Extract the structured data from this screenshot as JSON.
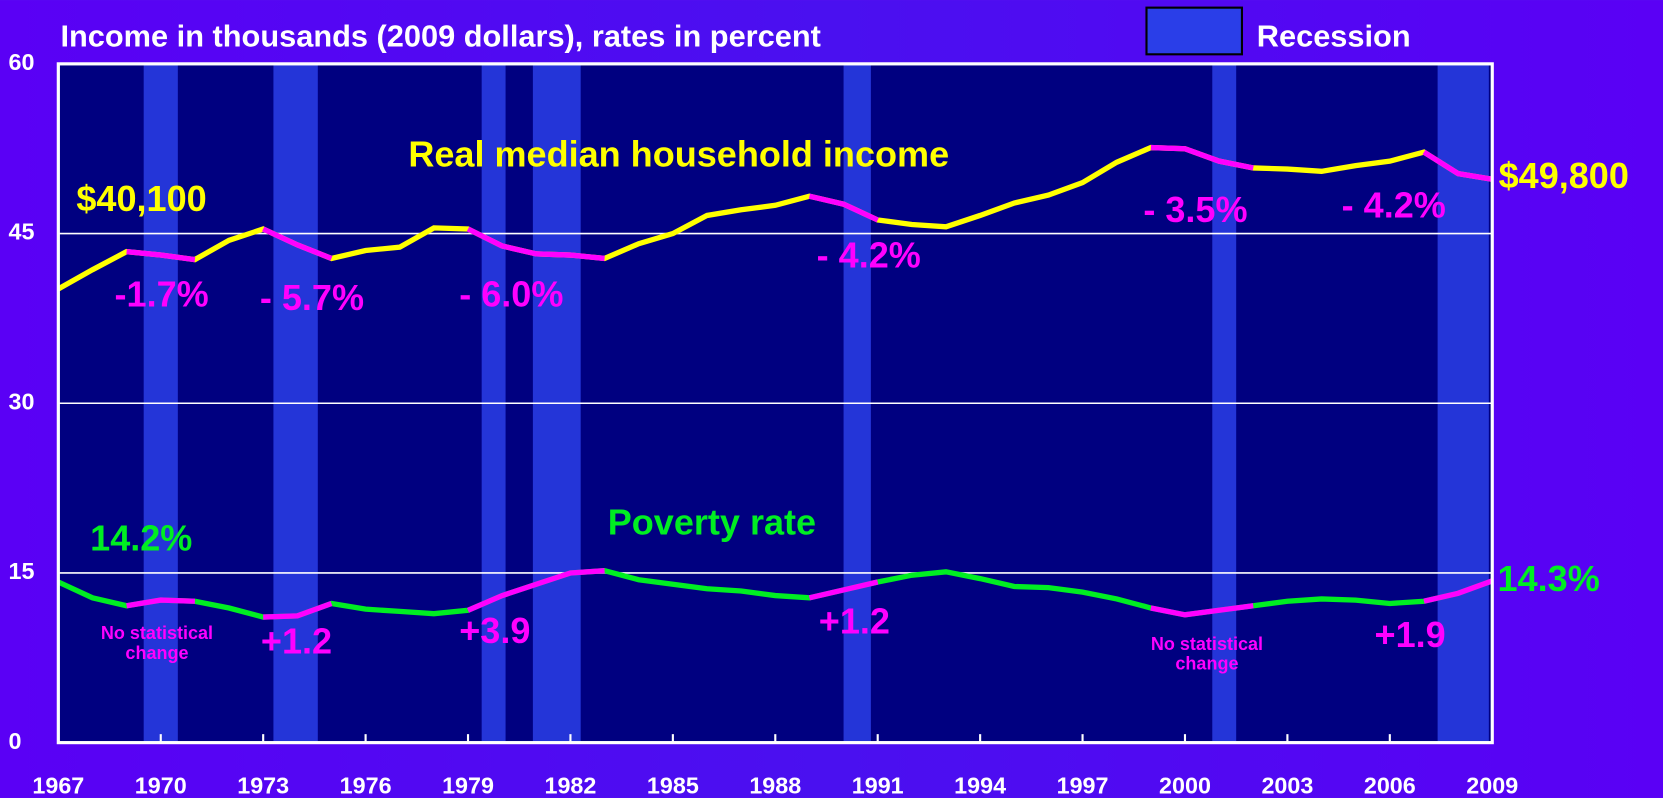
{
  "chart_data": {
    "type": "line",
    "title": "Income in thousands (2009 dollars), rates in percent",
    "legend_label": "Recession",
    "x": [
      1967,
      1968,
      1969,
      1970,
      1971,
      1972,
      1973,
      1974,
      1975,
      1976,
      1977,
      1978,
      1979,
      1980,
      1981,
      1982,
      1983,
      1984,
      1985,
      1986,
      1987,
      1988,
      1989,
      1990,
      1991,
      1992,
      1993,
      1994,
      1995,
      1996,
      1997,
      1998,
      1999,
      2000,
      2001,
      2002,
      2003,
      2004,
      2005,
      2006,
      2007,
      2008,
      2009
    ],
    "series": [
      {
        "name": "Real median household income",
        "color": "#ffff00",
        "highlight_color": "#ff00ff",
        "highlight_ranges": [
          [
            1969,
            1971
          ],
          [
            1973,
            1975
          ],
          [
            1979,
            1983
          ],
          [
            1989,
            1991
          ],
          [
            1999,
            2002
          ],
          [
            2007,
            2009
          ]
        ],
        "values": [
          40.1,
          41.8,
          43.4,
          43.1,
          42.7,
          44.4,
          45.4,
          44.0,
          42.8,
          43.5,
          43.8,
          45.5,
          45.4,
          43.9,
          43.2,
          43.1,
          42.8,
          44.1,
          45.0,
          46.6,
          47.1,
          47.5,
          48.3,
          47.6,
          46.2,
          45.8,
          45.6,
          46.6,
          47.7,
          48.4,
          49.5,
          51.3,
          52.6,
          52.5,
          51.4,
          50.8,
          50.7,
          50.5,
          51.0,
          51.4,
          52.2,
          50.3,
          49.8
        ]
      },
      {
        "name": "Poverty rate",
        "color": "#00ee22",
        "highlight_color": "#ff00ff",
        "highlight_ranges": [
          [
            1969,
            1971
          ],
          [
            1973,
            1975
          ],
          [
            1979,
            1983
          ],
          [
            1989,
            1991
          ],
          [
            1999,
            2002
          ],
          [
            2007,
            2009
          ]
        ],
        "values": [
          14.2,
          12.8,
          12.1,
          12.6,
          12.5,
          11.9,
          11.1,
          11.2,
          12.3,
          11.8,
          11.6,
          11.4,
          11.7,
          13.0,
          14.0,
          15.0,
          15.2,
          14.4,
          14.0,
          13.6,
          13.4,
          13.0,
          12.8,
          13.5,
          14.2,
          14.8,
          15.1,
          14.5,
          13.8,
          13.7,
          13.3,
          12.7,
          11.9,
          11.3,
          11.7,
          12.1,
          12.5,
          12.7,
          12.6,
          12.3,
          12.5,
          13.2,
          14.3
        ]
      }
    ],
    "recessions": [
      [
        1969.5,
        1970.5
      ],
      [
        1973.3,
        1974.6
      ],
      [
        1979.4,
        1980.1
      ],
      [
        1980.9,
        1982.3
      ],
      [
        1990.0,
        1990.8
      ],
      [
        2000.8,
        2001.5
      ],
      [
        2007.4,
        2008.9
      ]
    ],
    "recession_color": "#2a3ee8",
    "xlim": [
      1967,
      2009
    ],
    "xticks": [
      1967,
      1970,
      1973,
      1976,
      1979,
      1982,
      1985,
      1988,
      1991,
      1994,
      1997,
      2000,
      2003,
      2006,
      2009
    ],
    "ylim": [
      0,
      60
    ],
    "yticks": [
      0,
      15,
      30,
      45,
      60
    ],
    "grid": true,
    "annotations": [
      {
        "text": [
          "$40,100"
        ],
        "color": "#ffff00"
      },
      {
        "text": [
          "Real median household income"
        ],
        "color": "#ffff00"
      },
      {
        "text": [
          "-1.7%"
        ],
        "color": "#ff00ff"
      },
      {
        "text": [
          "- 5.7%"
        ],
        "color": "#ff00ff"
      },
      {
        "text": [
          "- 6.0%"
        ],
        "color": "#ff00ff"
      },
      {
        "text": [
          "- 4.2%"
        ],
        "color": "#ff00ff"
      },
      {
        "text": [
          "- 3.5%"
        ],
        "color": "#ff00ff"
      },
      {
        "text": [
          "- 4.2%"
        ],
        "color": "#ff00ff"
      },
      {
        "text": [
          "$49,800"
        ],
        "color": "#ffff00"
      },
      {
        "text": [
          "14.2%"
        ],
        "color": "#00ee22"
      },
      {
        "text": [
          "Poverty rate"
        ],
        "color": "#00ee22"
      },
      {
        "text": [
          "14.3%"
        ],
        "color": "#00ee22"
      },
      {
        "text": [
          "No statistical",
          "change"
        ],
        "color": "#ff00ff"
      },
      {
        "text": [
          "+1.2"
        ],
        "color": "#ff00ff"
      },
      {
        "text": [
          "+3.9"
        ],
        "color": "#ff00ff"
      },
      {
        "text": [
          "+1.2"
        ],
        "color": "#ff00ff"
      },
      {
        "text": [
          "No statistical",
          "change"
        ],
        "color": "#ff00ff"
      },
      {
        "text": [
          "+1.9"
        ],
        "color": "#ff00ff"
      }
    ]
  }
}
